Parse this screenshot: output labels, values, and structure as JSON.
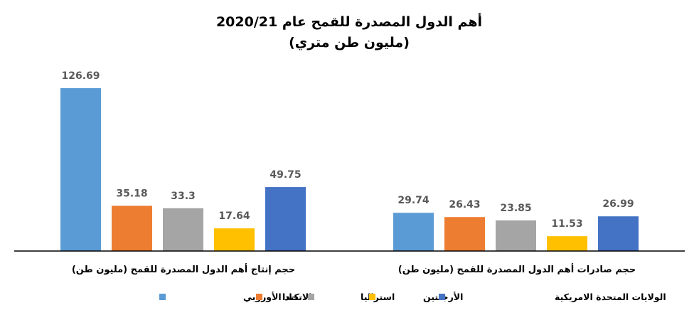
{
  "chart_data": {
    "type": "bar",
    "title": "أهم الدول المصدرة للقمح عام 2020/21",
    "subtitle": "(مليون طن متري)",
    "categories": [
      "حجم إنتاج أهم الدول المصدرة للقمح (مليون طن)",
      "حجم صادرات أهم الدول المصدرة للقمح (مليون طن)"
    ],
    "series": [
      {
        "name": "الاتحاد الأوروبي",
        "color": "#5B9BD5",
        "values": [
          126.69,
          29.74
        ],
        "labels": [
          "126.69",
          "29.74"
        ]
      },
      {
        "name": "كندا",
        "color": "#ED7D31",
        "values": [
          35.18,
          26.43
        ],
        "labels": [
          "35.18",
          "26.43"
        ]
      },
      {
        "name": "استراليا",
        "color": "#A5A5A5",
        "values": [
          33.3,
          23.85
        ],
        "labels": [
          "33.3",
          "23.85"
        ]
      },
      {
        "name": "الأرجنتين",
        "color": "#FFC000",
        "values": [
          17.64,
          11.53
        ],
        "labels": [
          "17.64",
          "11.53"
        ]
      },
      {
        "name": "الولايات المتحدة الامريكية",
        "color": "#4472C4",
        "values": [
          49.75,
          26.99
        ],
        "labels": [
          "49.75",
          "26.99"
        ]
      }
    ],
    "ylim": [
      0,
      126.69
    ],
    "grid": false,
    "legend": "bottom"
  }
}
